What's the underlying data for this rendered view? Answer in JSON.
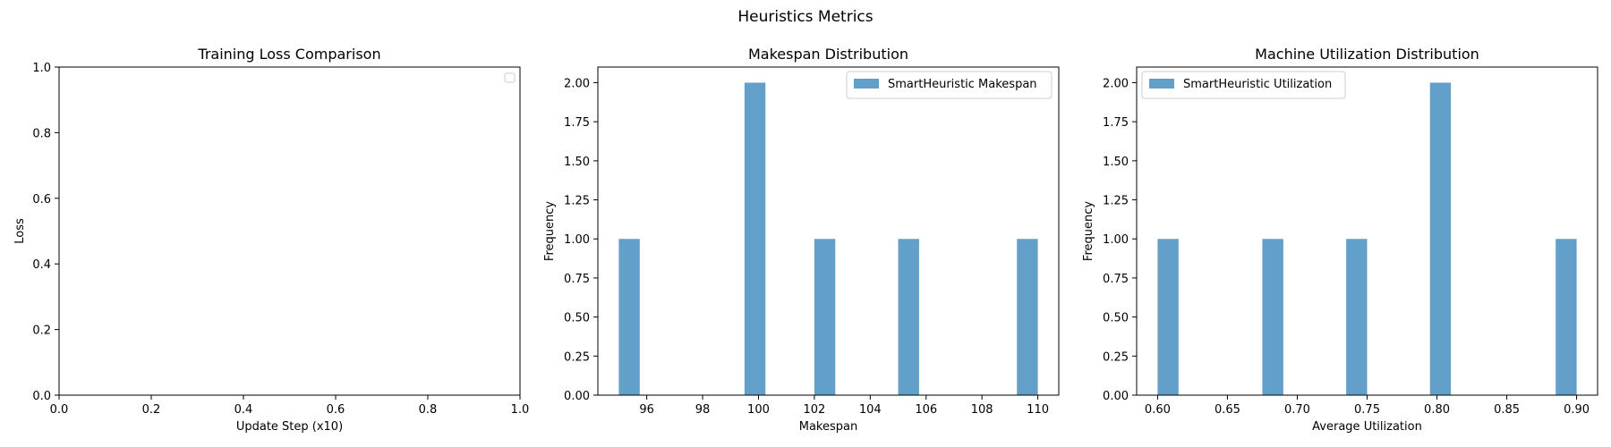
{
  "figure": {
    "title": "Heuristics Metrics"
  },
  "chart_data": [
    {
      "type": "line",
      "title": "Training Loss Comparison",
      "xlabel": "Update Step (x10)",
      "ylabel": "Loss",
      "xlim": [
        0,
        1
      ],
      "ylim": [
        0,
        1
      ],
      "x_ticks": [
        "0.0",
        "0.2",
        "0.4",
        "0.6",
        "0.8",
        "1.0"
      ],
      "y_ticks": [
        "0.0",
        "0.2",
        "0.4",
        "0.6",
        "0.8",
        "1.0"
      ],
      "series": [],
      "legend": {
        "placement": "top-right",
        "entries": []
      },
      "grid": false
    },
    {
      "type": "bar",
      "title": "Makespan Distribution",
      "xlabel": "Makespan",
      "ylabel": "Frequency",
      "xlim": [
        94.25,
        110.75
      ],
      "ylim": [
        0,
        2.1
      ],
      "x_ticks": [
        "96",
        "98",
        "100",
        "102",
        "104",
        "106",
        "108",
        "110"
      ],
      "y_ticks": [
        "0.00",
        "0.25",
        "0.50",
        "0.75",
        "1.00",
        "1.25",
        "1.50",
        "1.75",
        "2.00"
      ],
      "bin_width": 0.75,
      "bars": [
        {
          "x0": 95.0,
          "count": 1
        },
        {
          "x0": 99.5,
          "count": 2
        },
        {
          "x0": 102.0,
          "count": 1
        },
        {
          "x0": 105.0,
          "count": 1
        },
        {
          "x0": 109.25,
          "count": 1
        }
      ],
      "series": [
        {
          "name": "SmartHeuristic Makespan"
        }
      ],
      "legend": {
        "placement": "top-right",
        "entries": [
          "SmartHeuristic Makespan"
        ]
      },
      "color": "#1f77b4",
      "grid": false
    },
    {
      "type": "bar",
      "title": "Machine Utilization Distribution",
      "xlabel": "Average Utilization",
      "ylabel": "Frequency",
      "xlim": [
        0.585,
        0.915
      ],
      "ylim": [
        0,
        2.1
      ],
      "x_ticks": [
        "0.60",
        "0.65",
        "0.70",
        "0.75",
        "0.80",
        "0.85",
        "0.90"
      ],
      "y_ticks": [
        "0.00",
        "0.25",
        "0.50",
        "0.75",
        "1.00",
        "1.25",
        "1.50",
        "1.75",
        "2.00"
      ],
      "bin_width": 0.015,
      "bars": [
        {
          "x0": 0.6,
          "count": 1
        },
        {
          "x0": 0.675,
          "count": 1
        },
        {
          "x0": 0.735,
          "count": 1
        },
        {
          "x0": 0.795,
          "count": 2
        },
        {
          "x0": 0.885,
          "count": 1
        }
      ],
      "series": [
        {
          "name": "SmartHeuristic Utilization"
        }
      ],
      "legend": {
        "placement": "top-left",
        "entries": [
          "SmartHeuristic Utilization"
        ]
      },
      "color": "#1f77b4",
      "grid": false
    }
  ]
}
